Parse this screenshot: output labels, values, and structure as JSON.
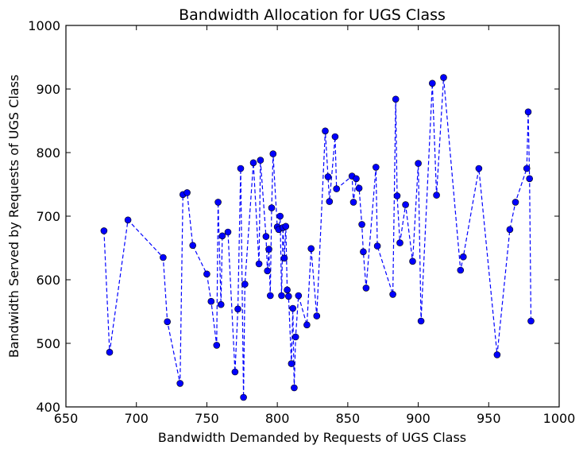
{
  "chart_data": {
    "type": "line",
    "title": "Bandwidth Allocation for UGS Class",
    "xlabel": "Bandwidth Demanded by Requests of UGS Class",
    "ylabel": "Bandwidth Served by Requests of UGS Class",
    "xlim": [
      650,
      1000
    ],
    "ylim": [
      400,
      1000
    ],
    "xticks": [
      "650",
      "700",
      "750",
      "800",
      "850",
      "900",
      "950",
      "1000"
    ],
    "yticks": [
      "400",
      "500",
      "600",
      "700",
      "800",
      "900",
      "1000"
    ],
    "grid": false,
    "legend": "none",
    "line_style": "dashed",
    "marker": "circle",
    "color": "#0000ff",
    "series": [
      {
        "points": [
          [
            677,
            677
          ],
          [
            681,
            486
          ],
          [
            694,
            694
          ],
          [
            719,
            635
          ],
          [
            722,
            534
          ],
          [
            731,
            437
          ],
          [
            733,
            734
          ],
          [
            736,
            737
          ],
          [
            740,
            654
          ],
          [
            750,
            609
          ],
          [
            753,
            566
          ],
          [
            757,
            497
          ],
          [
            758,
            722
          ],
          [
            760,
            561
          ],
          [
            761,
            669
          ],
          [
            765,
            675
          ],
          [
            770,
            455
          ],
          [
            772,
            554
          ],
          [
            774,
            775
          ],
          [
            776,
            415
          ],
          [
            777,
            593
          ],
          [
            783,
            784
          ],
          [
            787,
            625
          ],
          [
            788,
            788
          ],
          [
            792,
            668
          ],
          [
            793,
            614
          ],
          [
            794,
            648
          ],
          [
            795,
            575
          ],
          [
            796,
            713
          ],
          [
            797,
            798
          ],
          [
            800,
            683
          ],
          [
            801,
            679
          ],
          [
            802,
            700
          ],
          [
            803,
            575
          ],
          [
            804,
            682
          ],
          [
            805,
            634
          ],
          [
            806,
            684
          ],
          [
            807,
            584
          ],
          [
            808,
            574
          ],
          [
            810,
            468
          ],
          [
            811,
            555
          ],
          [
            812,
            430
          ],
          [
            813,
            510
          ],
          [
            815,
            575
          ],
          [
            821,
            529
          ],
          [
            824,
            649
          ],
          [
            828,
            543
          ],
          [
            834,
            834
          ],
          [
            836,
            762
          ],
          [
            837,
            723
          ],
          [
            841,
            825
          ],
          [
            842,
            743
          ],
          [
            853,
            763
          ],
          [
            854,
            722
          ],
          [
            856,
            759
          ],
          [
            858,
            744
          ],
          [
            860,
            687
          ],
          [
            861,
            644
          ],
          [
            863,
            587
          ],
          [
            870,
            777
          ],
          [
            871,
            653
          ],
          [
            882,
            577
          ],
          [
            884,
            884
          ],
          [
            885,
            732
          ],
          [
            887,
            658
          ],
          [
            891,
            718
          ],
          [
            896,
            629
          ],
          [
            900,
            783
          ],
          [
            902,
            535
          ],
          [
            910,
            909
          ],
          [
            913,
            733
          ],
          [
            918,
            918
          ],
          [
            930,
            615
          ],
          [
            932,
            636
          ],
          [
            943,
            775
          ],
          [
            956,
            482
          ],
          [
            965,
            679
          ],
          [
            969,
            722
          ],
          [
            977,
            775
          ],
          [
            978,
            864
          ],
          [
            979,
            759
          ],
          [
            980,
            535
          ]
        ]
      }
    ]
  }
}
